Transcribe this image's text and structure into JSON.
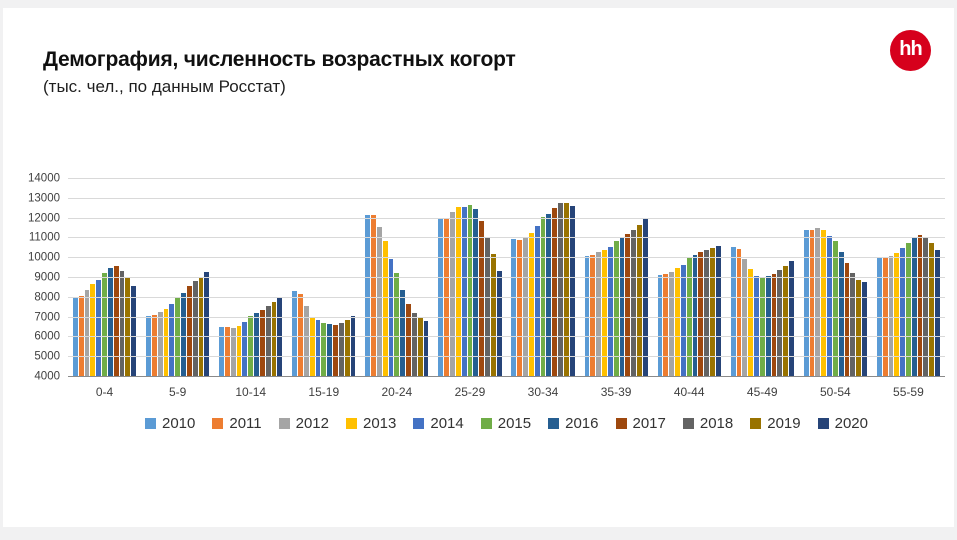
{
  "page": {
    "background": "#f1f1f2",
    "slide_background": "#ffffff"
  },
  "header": {
    "title": "Демография, численность возрастных когорт",
    "subtitle": "(тыс. чел., по данным Росстат)",
    "logo": {
      "text": "hh",
      "background": "#d6001c",
      "color": "#ffffff"
    }
  },
  "chart_data": {
    "type": "bar",
    "title": "Демография, численность возрастных когорт (тыс. чел., по данным Росстат)",
    "categories": [
      "0-4",
      "5-9",
      "10-14",
      "15-19",
      "20-24",
      "25-29",
      "30-34",
      "35-39",
      "40-44",
      "45-49",
      "50-54",
      "55-59"
    ],
    "series": [
      {
        "name": "2010",
        "color": "#5B9BD5",
        "values": [
          7950,
          7050,
          6520,
          8330,
          12150,
          11950,
          10950,
          10100,
          9150,
          10550,
          11400,
          10000
        ]
      },
      {
        "name": "2011",
        "color": "#ED7D31",
        "values": [
          8050,
          7100,
          6520,
          8150,
          12140,
          11950,
          10900,
          10150,
          9200,
          10450,
          11400,
          10020
        ]
      },
      {
        "name": "2012",
        "color": "#A5A5A5",
        "values": [
          8380,
          7250,
          6470,
          7550,
          11550,
          12270,
          11050,
          10300,
          9270,
          9950,
          11500,
          10100
        ]
      },
      {
        "name": "2013",
        "color": "#FFC000",
        "values": [
          8660,
          7400,
          6580,
          7020,
          10830,
          12530,
          11250,
          10400,
          9470,
          9450,
          11400,
          10250
        ]
      },
      {
        "name": "2014",
        "color": "#4472C4",
        "values": [
          8900,
          7650,
          6750,
          6860,
          9910,
          12560,
          11600,
          10550,
          9650,
          9100,
          11100,
          10500
        ]
      },
      {
        "name": "2015",
        "color": "#70AD47",
        "values": [
          9250,
          8000,
          7070,
          6720,
          9220,
          12630,
          12030,
          10830,
          10050,
          9050,
          10850,
          10750
        ]
      },
      {
        "name": "2016",
        "color": "#255E91",
        "values": [
          9500,
          8200,
          7200,
          6650,
          8370,
          12450,
          12200,
          11050,
          10140,
          9070,
          10300,
          11000
        ]
      },
      {
        "name": "2017",
        "color": "#9E480E",
        "values": [
          9580,
          8550,
          7370,
          6600,
          7680,
          11850,
          12500,
          11170,
          10300,
          9180,
          9750,
          11120
        ]
      },
      {
        "name": "2018",
        "color": "#636363",
        "values": [
          9350,
          8850,
          7550,
          6690,
          7210,
          11050,
          12760,
          11380,
          10400,
          9390,
          9250,
          11000
        ]
      },
      {
        "name": "2019",
        "color": "#997300",
        "values": [
          9030,
          9050,
          7770,
          6860,
          6950,
          10170,
          12750,
          11650,
          10470,
          9560,
          8900,
          10730
        ]
      },
      {
        "name": "2020",
        "color": "#264478",
        "values": [
          8570,
          9300,
          7980,
          7070,
          6790,
          9350,
          12600,
          11980,
          10600,
          9820,
          8750,
          10400
        ]
      }
    ],
    "y_axis": {
      "min": 4000,
      "max": 14000,
      "step": 1000,
      "tick_labels": [
        "14000",
        "13000",
        "12000",
        "11000",
        "10000",
        "9000",
        "8000",
        "7000",
        "6000",
        "5000",
        "4000"
      ]
    },
    "grid": true,
    "legend_position": "bottom",
    "grid_color": "#d9d9d9",
    "axis_line_color": "#8a8a8a"
  }
}
